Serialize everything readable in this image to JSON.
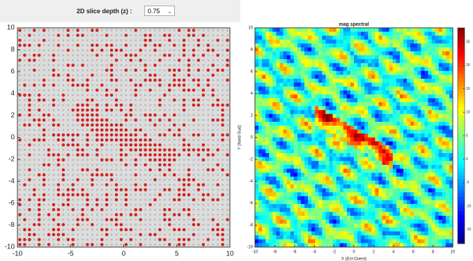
{
  "toolbar": {
    "label": "2D slice depth (z) :",
    "value": "0.75"
  },
  "left_plot": {
    "xticks": [
      -10,
      -5,
      0,
      5,
      10
    ],
    "yticks": [
      -10,
      -8,
      -6,
      -4,
      -2,
      0,
      2,
      4,
      6,
      8,
      10
    ],
    "xlim": [
      -10,
      10
    ],
    "ylim": [
      -10,
      10
    ]
  },
  "right_plot": {
    "title": "mag spectral",
    "ylabel": "Y (Nord-Sud)",
    "xlabel": "X (Est-Ouest)",
    "xticks": [
      -10,
      -8,
      -6,
      -4,
      -2,
      0,
      2,
      4,
      6,
      8,
      10
    ],
    "yticks": [
      -10,
      -8,
      -6,
      -4,
      -2,
      0,
      2,
      4,
      6,
      8,
      10
    ],
    "xlim": [
      -10,
      10
    ],
    "ylim": [
      -10,
      10
    ],
    "colorbar": {
      "ticks": [
        -15,
        -10,
        -5,
        0,
        5,
        10,
        15,
        20,
        25
      ],
      "lim": [
        -18,
        28
      ]
    }
  }
}
